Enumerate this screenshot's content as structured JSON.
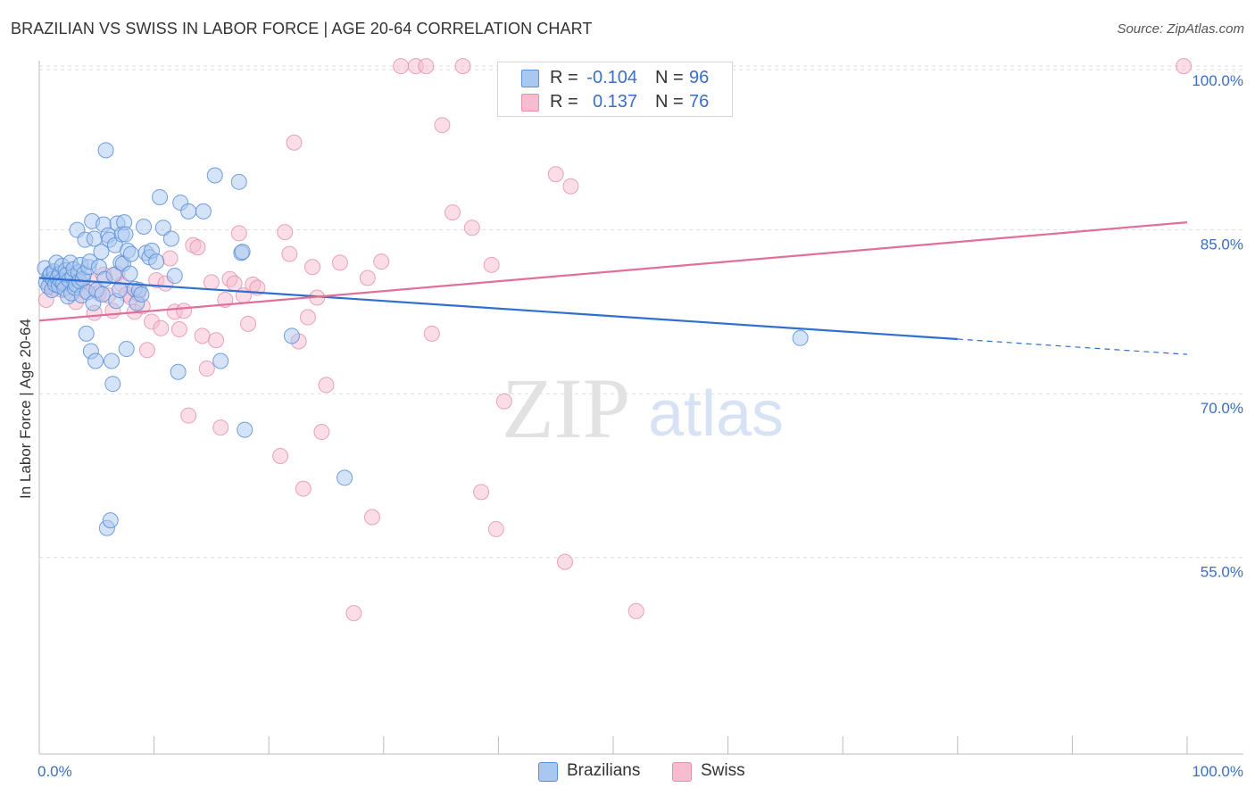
{
  "title": "BRAZILIAN VS SWISS IN LABOR FORCE | AGE 20-64 CORRELATION CHART",
  "source": "Source: ZipAtlas.com",
  "watermark": {
    "zip": "ZIP",
    "atlas": "atlas"
  },
  "colors": {
    "blue_fill": "#a9c8ef",
    "blue_stroke": "#5b8fd8",
    "blue_line": "#2f6fd0",
    "pink_fill": "#f6bcd0",
    "pink_stroke": "#e58fae",
    "pink_line": "#e0709a",
    "grid": "#dddddd",
    "tick_label": "#3a6fc4"
  },
  "legend": {
    "rows": [
      {
        "r_label": "R =",
        "r_value": "-0.104",
        "n_label": "N =",
        "n_value": "96"
      },
      {
        "r_label": "R =",
        "r_value": "0.137",
        "n_label": "N =",
        "n_value": "76"
      }
    ]
  },
  "bottom_legend": {
    "brazilians": "Brazilians",
    "swiss": "Swiss"
  },
  "chart_data": {
    "type": "scatter",
    "title": "BRAZILIAN VS SWISS IN LABOR FORCE | AGE 20-64 CORRELATION CHART",
    "xlabel": "",
    "ylabel": "In Labor Force | Age 20-64",
    "xlim": [
      0,
      100
    ],
    "ylim": [
      37,
      100.5
    ],
    "x_tick_labels": [
      {
        "value": 0,
        "label": "0.0%"
      },
      {
        "value": 100,
        "label": "100.0%"
      }
    ],
    "y_tick_labels": [
      {
        "value": 55,
        "label": "55.0%"
      },
      {
        "value": 70,
        "label": "70.0%"
      },
      {
        "value": 85,
        "label": "85.0%"
      },
      {
        "value": 100,
        "label": "100.0%"
      }
    ],
    "grid": true,
    "series": [
      {
        "name": "Brazilians",
        "R": -0.104,
        "N": 96,
        "trend": {
          "x0": 0,
          "y0": 80.6,
          "x1": 80,
          "y1": 75.0,
          "dash_to_x": 100,
          "dash_to_y": 73.6
        },
        "points": [
          [
            0.5,
            81.5
          ],
          [
            0.6,
            80.2
          ],
          [
            0.8,
            79.8
          ],
          [
            0.9,
            80.8
          ],
          [
            1.0,
            81.0
          ],
          [
            1.1,
            79.5
          ],
          [
            1.2,
            80.5
          ],
          [
            1.3,
            81.2
          ],
          [
            1.4,
            80.0
          ],
          [
            1.5,
            82.0
          ],
          [
            1.6,
            80.6
          ],
          [
            1.7,
            79.9
          ],
          [
            1.8,
            81.0
          ],
          [
            1.9,
            80.3
          ],
          [
            2.0,
            81.7
          ],
          [
            2.1,
            80.1
          ],
          [
            2.2,
            79.6
          ],
          [
            2.3,
            81.3
          ],
          [
            2.4,
            80.9
          ],
          [
            2.5,
            78.9
          ],
          [
            2.6,
            80.4
          ],
          [
            2.7,
            82.0
          ],
          [
            2.8,
            79.2
          ],
          [
            2.9,
            80.7
          ],
          [
            3.0,
            81.4
          ],
          [
            3.1,
            79.7
          ],
          [
            3.2,
            80.0
          ],
          [
            3.3,
            85.0
          ],
          [
            3.4,
            81.1
          ],
          [
            3.5,
            80.3
          ],
          [
            3.6,
            81.8
          ],
          [
            3.7,
            79.0
          ],
          [
            3.8,
            80.5
          ],
          [
            3.9,
            81.0
          ],
          [
            4.0,
            84.1
          ],
          [
            4.1,
            75.5
          ],
          [
            4.2,
            79.3
          ],
          [
            4.3,
            81.6
          ],
          [
            4.4,
            82.1
          ],
          [
            4.5,
            73.9
          ],
          [
            4.6,
            85.8
          ],
          [
            4.7,
            78.3
          ],
          [
            4.8,
            84.2
          ],
          [
            4.9,
            73.0
          ],
          [
            5.0,
            79.5
          ],
          [
            5.2,
            81.6
          ],
          [
            5.4,
            83.0
          ],
          [
            5.5,
            79.1
          ],
          [
            5.6,
            85.5
          ],
          [
            5.7,
            80.5
          ],
          [
            5.8,
            92.3
          ],
          [
            5.9,
            57.7
          ],
          [
            6.0,
            84.5
          ],
          [
            6.1,
            84.1
          ],
          [
            6.2,
            58.4
          ],
          [
            6.3,
            73.0
          ],
          [
            6.4,
            70.9
          ],
          [
            6.5,
            80.9
          ],
          [
            6.6,
            83.6
          ],
          [
            6.7,
            78.5
          ],
          [
            6.8,
            85.6
          ],
          [
            7.0,
            79.5
          ],
          [
            7.1,
            82.0
          ],
          [
            7.2,
            84.6
          ],
          [
            7.3,
            81.9
          ],
          [
            7.4,
            85.7
          ],
          [
            7.5,
            84.6
          ],
          [
            7.6,
            74.1
          ],
          [
            7.7,
            83.1
          ],
          [
            7.9,
            81.0
          ],
          [
            8.0,
            82.8
          ],
          [
            8.3,
            79.6
          ],
          [
            8.5,
            78.3
          ],
          [
            8.7,
            79.5
          ],
          [
            8.9,
            79.1
          ],
          [
            9.1,
            85.3
          ],
          [
            9.3,
            82.9
          ],
          [
            9.6,
            82.5
          ],
          [
            9.8,
            83.1
          ],
          [
            10.2,
            82.1
          ],
          [
            10.5,
            88.0
          ],
          [
            10.8,
            85.2
          ],
          [
            11.5,
            84.2
          ],
          [
            11.8,
            80.8
          ],
          [
            12.1,
            72.0
          ],
          [
            12.3,
            87.5
          ],
          [
            13.0,
            86.7
          ],
          [
            14.3,
            86.7
          ],
          [
            15.3,
            90.0
          ],
          [
            15.8,
            73.0
          ],
          [
            17.4,
            89.4
          ],
          [
            17.6,
            82.9
          ],
          [
            17.7,
            83.0
          ],
          [
            17.9,
            66.7
          ],
          [
            22.0,
            75.3
          ],
          [
            26.6,
            62.3
          ]
        ],
        "extra_points": [
          [
            66.3,
            75.1
          ]
        ]
      },
      {
        "name": "Swiss",
        "R": 0.137,
        "N": 76,
        "trend": {
          "x0": 0,
          "y0": 76.7,
          "x1": 100,
          "y1": 85.7
        },
        "points": [
          [
            0.6,
            78.6
          ],
          [
            0.9,
            80.0
          ],
          [
            1.2,
            79.7
          ],
          [
            1.6,
            80.2
          ],
          [
            2.0,
            79.5
          ],
          [
            2.4,
            80.6
          ],
          [
            2.8,
            79.8
          ],
          [
            3.2,
            78.4
          ],
          [
            3.6,
            80.2
          ],
          [
            4.0,
            79.4
          ],
          [
            4.4,
            80.3
          ],
          [
            4.8,
            77.4
          ],
          [
            5.2,
            79.2
          ],
          [
            5.6,
            80.9
          ],
          [
            6.0,
            79.0
          ],
          [
            6.4,
            77.6
          ],
          [
            6.8,
            81.0
          ],
          [
            7.2,
            80.0
          ],
          [
            7.6,
            79.1
          ],
          [
            8.0,
            78.8
          ],
          [
            8.3,
            77.5
          ],
          [
            8.6,
            79.2
          ],
          [
            9.0,
            78.0
          ],
          [
            9.4,
            74.0
          ],
          [
            9.8,
            76.6
          ],
          [
            10.2,
            80.4
          ],
          [
            10.6,
            76.0
          ],
          [
            11.0,
            80.1
          ],
          [
            11.4,
            82.4
          ],
          [
            11.8,
            77.5
          ],
          [
            12.2,
            75.9
          ],
          [
            12.6,
            77.6
          ],
          [
            13.0,
            68.0
          ],
          [
            13.4,
            83.6
          ],
          [
            13.8,
            83.4
          ],
          [
            14.2,
            75.3
          ],
          [
            14.6,
            72.3
          ],
          [
            15.0,
            80.2
          ],
          [
            15.4,
            74.9
          ],
          [
            15.8,
            66.9
          ],
          [
            16.2,
            78.6
          ],
          [
            16.6,
            80.5
          ],
          [
            17.0,
            80.1
          ],
          [
            17.4,
            84.7
          ],
          [
            17.8,
            79.0
          ],
          [
            18.2,
            76.4
          ],
          [
            18.6,
            80.0
          ],
          [
            19.0,
            79.7
          ],
          [
            21.0,
            64.3
          ],
          [
            21.4,
            84.8
          ],
          [
            21.8,
            82.8
          ],
          [
            22.2,
            93.0
          ],
          [
            22.6,
            74.8
          ],
          [
            23.0,
            61.3
          ],
          [
            23.4,
            77.0
          ],
          [
            23.8,
            81.6
          ],
          [
            24.2,
            78.8
          ],
          [
            24.6,
            66.5
          ],
          [
            25.0,
            70.8
          ],
          [
            26.2,
            82.0
          ],
          [
            27.4,
            49.9
          ],
          [
            28.6,
            80.6
          ],
          [
            29.0,
            58.7
          ],
          [
            29.8,
            82.1
          ],
          [
            31.5,
            100.0
          ],
          [
            32.8,
            100.0
          ],
          [
            33.7,
            100.0
          ],
          [
            34.2,
            75.5
          ],
          [
            35.1,
            94.6
          ],
          [
            36.0,
            86.6
          ],
          [
            36.9,
            100.0
          ],
          [
            37.7,
            85.2
          ],
          [
            38.5,
            61.0
          ],
          [
            39.4,
            81.8
          ],
          [
            39.8,
            57.6
          ],
          [
            40.5,
            69.3
          ]
        ],
        "extra_points": [
          [
            45.0,
            90.1
          ],
          [
            46.3,
            89.0
          ],
          [
            45.8,
            54.6
          ],
          [
            52.0,
            50.1
          ],
          [
            99.7,
            100.0
          ]
        ]
      }
    ]
  }
}
